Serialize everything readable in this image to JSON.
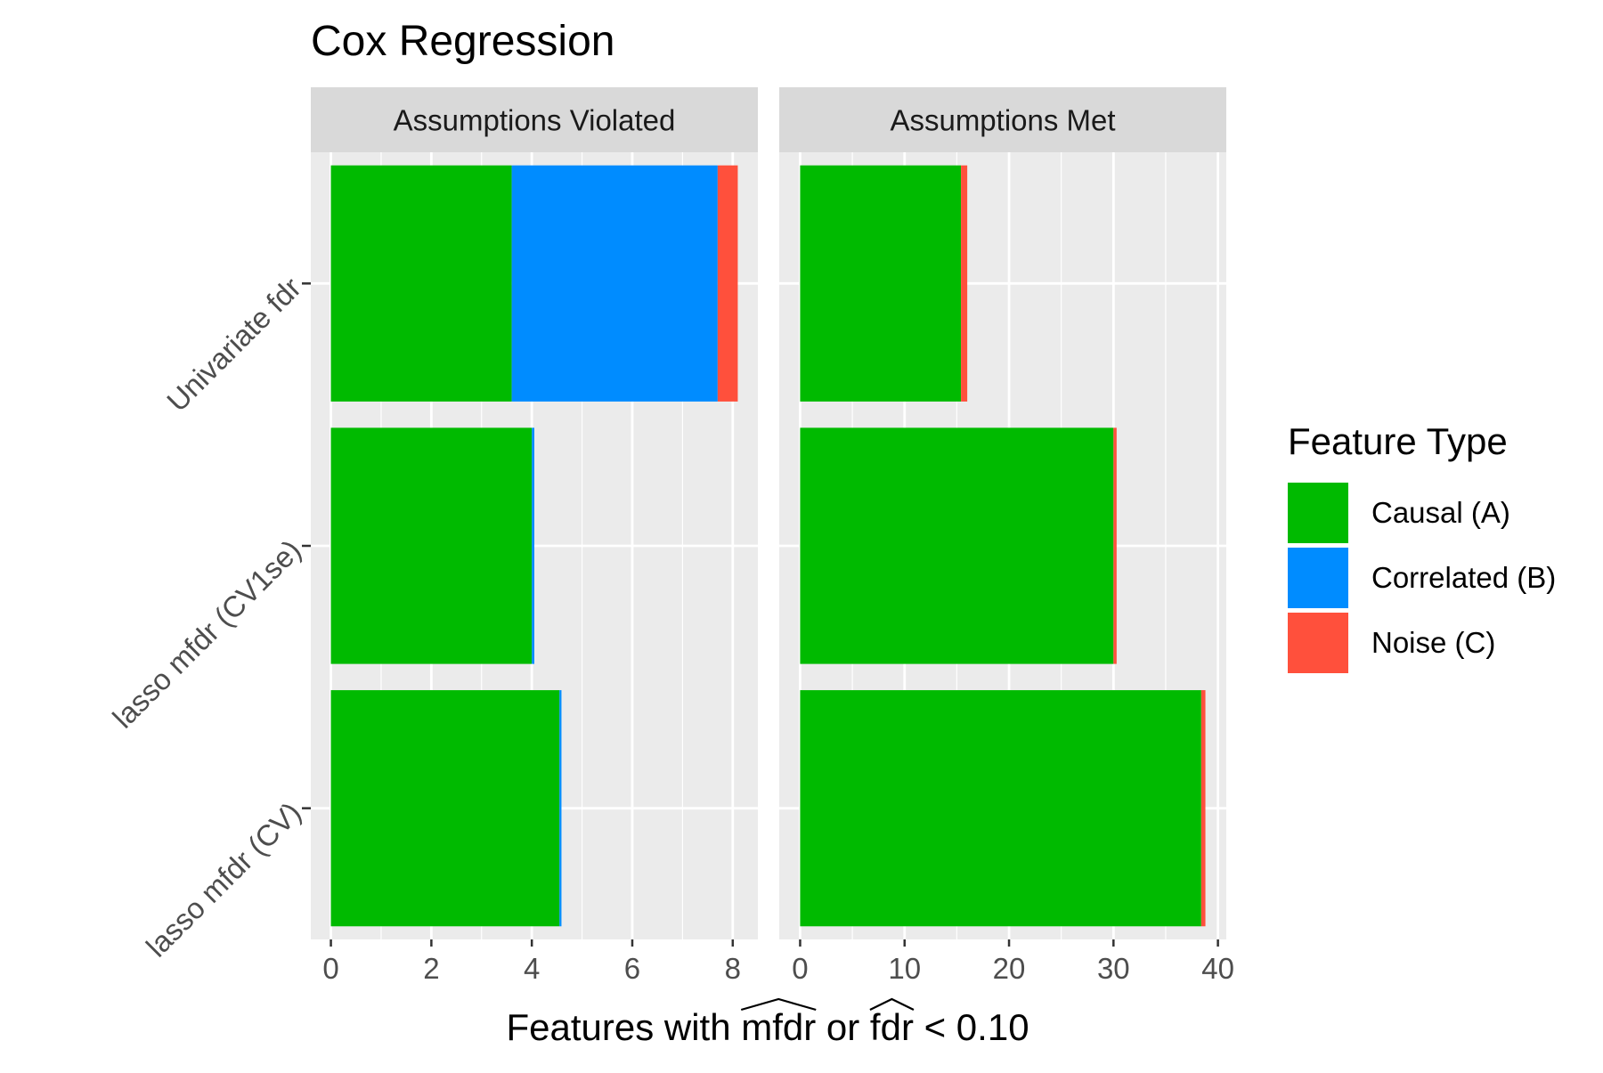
{
  "chart_data": {
    "type": "bar",
    "orientation": "horizontal",
    "stacked": true,
    "title": "Cox Regression",
    "xlabel": {
      "prefix": "Features with ",
      "term1": "mfdr",
      "middle": " or ",
      "term2": "fdr",
      "suffix": " < 0.10"
    },
    "ylabel": "",
    "categories": [
      "Univariate fdr",
      "lasso mfdr (CV1se)",
      "lasso mfdr (CV)"
    ],
    "legend": {
      "title": "Feature Type",
      "position": "right"
    },
    "series_colors": [
      "#00BA00",
      "#008CFF",
      "#FF503C"
    ],
    "panels": [
      {
        "title": "Assumptions Violated",
        "xlim": [
          -0.4,
          8.5
        ],
        "xticks": [
          0,
          2,
          4,
          6,
          8
        ],
        "series": [
          {
            "name": "Causal (A)",
            "values": [
              3.6,
              4.0,
              4.55
            ]
          },
          {
            "name": "Correlated (B)",
            "values": [
              4.1,
              0.05,
              0.04
            ]
          },
          {
            "name": "Noise (C)",
            "values": [
              0.4,
              0.0,
              0.0
            ]
          }
        ]
      },
      {
        "title": "Assumptions Met",
        "xlim": [
          -2.0,
          40.8
        ],
        "xticks": [
          0,
          10,
          20,
          30,
          40
        ],
        "series": [
          {
            "name": "Causal (A)",
            "values": [
              15.4,
              30.0,
              38.4
            ]
          },
          {
            "name": "Correlated (B)",
            "values": [
              0.0,
              0.0,
              0.0
            ]
          },
          {
            "name": "Noise (C)",
            "values": [
              0.6,
              0.3,
              0.4
            ]
          }
        ]
      }
    ],
    "grid": true
  }
}
